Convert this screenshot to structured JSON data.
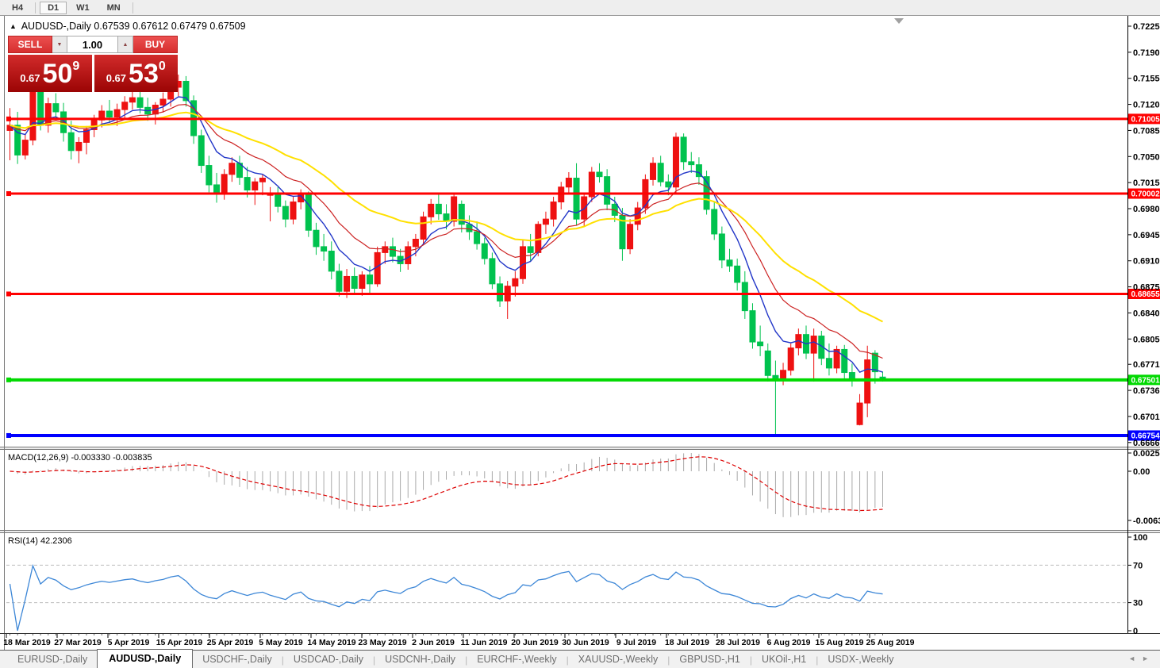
{
  "toolbar": {
    "timeframes": [
      "H4",
      "D1",
      "W1",
      "MN"
    ],
    "active": "D1"
  },
  "chart_header": {
    "symbol": "AUDUSD-,Daily",
    "ohlc": "0.67539 0.67612 0.67479 0.67509"
  },
  "trade_panel": {
    "sell_label": "SELL",
    "buy_label": "BUY",
    "volume": "1.00",
    "sell": {
      "prefix": "0.67",
      "big": "50",
      "sup": "9"
    },
    "buy": {
      "prefix": "0.67",
      "big": "53",
      "sup": "0"
    }
  },
  "chart_data": {
    "type": "candlestick",
    "symbol": "AUDUSD",
    "timeframe": "Daily",
    "convention": "red = up candle, green = down candle",
    "colors": {
      "up": "#ee1111",
      "down": "#00c24e",
      "ma_fast": "#2236c8",
      "ma_mid": "#cc2222",
      "ma_slow": "#ffe000",
      "macd_bar": "#a9a9a9",
      "macd_signal": "#dd0000",
      "rsi_line": "#3d87d7"
    },
    "ohlc": [
      [
        0.7085,
        0.7115,
        0.7045,
        0.7092
      ],
      [
        0.7092,
        0.711,
        0.704,
        0.7052
      ],
      [
        0.7052,
        0.708,
        0.7046,
        0.7072
      ],
      [
        0.7072,
        0.7148,
        0.7065,
        0.7143
      ],
      [
        0.7143,
        0.7155,
        0.7085,
        0.7092
      ],
      [
        0.7092,
        0.7129,
        0.7082,
        0.7121
      ],
      [
        0.7121,
        0.7135,
        0.71,
        0.711
      ],
      [
        0.711,
        0.7122,
        0.707,
        0.7082
      ],
      [
        0.7082,
        0.7098,
        0.7046,
        0.7058
      ],
      [
        0.7058,
        0.7076,
        0.7041,
        0.7069
      ],
      [
        0.7069,
        0.7091,
        0.7053,
        0.7086
      ],
      [
        0.7086,
        0.7106,
        0.7076,
        0.7099
      ],
      [
        0.7099,
        0.7119,
        0.7089,
        0.7111
      ],
      [
        0.7111,
        0.7126,
        0.7095,
        0.7103
      ],
      [
        0.7103,
        0.7121,
        0.7091,
        0.7113
      ],
      [
        0.7113,
        0.7131,
        0.7101,
        0.7123
      ],
      [
        0.7123,
        0.7146,
        0.7113,
        0.7129
      ],
      [
        0.7129,
        0.7141,
        0.7108,
        0.7116
      ],
      [
        0.7116,
        0.7129,
        0.7098,
        0.7107
      ],
      [
        0.7107,
        0.7123,
        0.7093,
        0.7119
      ],
      [
        0.7119,
        0.7136,
        0.7109,
        0.7127
      ],
      [
        0.7127,
        0.7149,
        0.7117,
        0.7143
      ],
      [
        0.7143,
        0.716,
        0.7131,
        0.7151
      ],
      [
        0.7151,
        0.7158,
        0.7117,
        0.7125
      ],
      [
        0.7125,
        0.7132,
        0.7067,
        0.7078
      ],
      [
        0.7078,
        0.7086,
        0.7028,
        0.7038
      ],
      [
        0.7038,
        0.7051,
        0.7002,
        0.7012
      ],
      [
        0.7012,
        0.7028,
        0.6988,
        0.7
      ],
      [
        0.7,
        0.7033,
        0.6992,
        0.7026
      ],
      [
        0.7026,
        0.7049,
        0.7016,
        0.7041
      ],
      [
        0.7041,
        0.7051,
        0.7012,
        0.7022
      ],
      [
        0.7022,
        0.7036,
        0.6995,
        0.7005
      ],
      [
        0.7005,
        0.7021,
        0.6985,
        0.7016
      ],
      [
        0.7016,
        0.7026,
        0.6998,
        0.7021
      ],
      [
        0.6998,
        0.7009,
        0.6963,
        0.6999
      ],
      [
        0.6999,
        0.7009,
        0.6975,
        0.6983
      ],
      [
        0.6983,
        0.6991,
        0.6955,
        0.6966
      ],
      [
        0.6966,
        0.6996,
        0.6959,
        0.6989
      ],
      [
        0.6989,
        0.7006,
        0.6979,
        0.6999
      ],
      [
        0.6999,
        0.7003,
        0.6942,
        0.6951
      ],
      [
        0.6951,
        0.6961,
        0.6918,
        0.6929
      ],
      [
        0.6929,
        0.6946,
        0.691,
        0.6923
      ],
      [
        0.6923,
        0.6936,
        0.6885,
        0.6896
      ],
      [
        0.6896,
        0.6906,
        0.6862,
        0.6869
      ],
      [
        0.6869,
        0.6899,
        0.686,
        0.6889
      ],
      [
        0.6889,
        0.6901,
        0.6865,
        0.6873
      ],
      [
        0.6873,
        0.6896,
        0.6863,
        0.6891
      ],
      [
        0.6891,
        0.6903,
        0.6866,
        0.6879
      ],
      [
        0.6879,
        0.6929,
        0.6875,
        0.6921
      ],
      [
        0.6921,
        0.6936,
        0.6906,
        0.6929
      ],
      [
        0.6929,
        0.6941,
        0.6908,
        0.6916
      ],
      [
        0.6916,
        0.6926,
        0.6895,
        0.6906
      ],
      [
        0.6906,
        0.6936,
        0.6898,
        0.6929
      ],
      [
        0.6929,
        0.6946,
        0.6916,
        0.6939
      ],
      [
        0.6939,
        0.6976,
        0.6931,
        0.6969
      ],
      [
        0.6969,
        0.6993,
        0.6959,
        0.6986
      ],
      [
        0.6986,
        0.7001,
        0.6965,
        0.6973
      ],
      [
        0.6973,
        0.6986,
        0.6952,
        0.6963
      ],
      [
        0.6963,
        0.6999,
        0.6956,
        0.6996
      ],
      [
        0.6986,
        0.6991,
        0.6948,
        0.6959
      ],
      [
        0.6959,
        0.6971,
        0.6938,
        0.6949
      ],
      [
        0.6949,
        0.6963,
        0.6925,
        0.6933
      ],
      [
        0.6933,
        0.6941,
        0.6905,
        0.6913
      ],
      [
        0.6913,
        0.6921,
        0.6872,
        0.6879
      ],
      [
        0.6879,
        0.6889,
        0.6848,
        0.6856
      ],
      [
        0.6856,
        0.6883,
        0.6832,
        0.6876
      ],
      [
        0.6876,
        0.6896,
        0.6862,
        0.6886
      ],
      [
        0.6886,
        0.6939,
        0.6879,
        0.6929
      ],
      [
        0.6929,
        0.6946,
        0.691,
        0.6921
      ],
      [
        0.6921,
        0.6963,
        0.6916,
        0.6959
      ],
      [
        0.6959,
        0.6976,
        0.6946,
        0.6966
      ],
      [
        0.6966,
        0.6996,
        0.6956,
        0.6989
      ],
      [
        0.6989,
        0.7016,
        0.6979,
        0.7009
      ],
      [
        0.7009,
        0.7029,
        0.6999,
        0.7021
      ],
      [
        0.7021,
        0.7041,
        0.6958,
        0.6966
      ],
      [
        0.6966,
        0.7001,
        0.6956,
        0.6996
      ],
      [
        0.6996,
        0.7036,
        0.6989,
        0.7029
      ],
      [
        0.7029,
        0.7041,
        0.7015,
        0.7023
      ],
      [
        0.7023,
        0.7033,
        0.6978,
        0.6986
      ],
      [
        0.6986,
        0.6996,
        0.6962,
        0.6971
      ],
      [
        0.6971,
        0.6981,
        0.691,
        0.6926
      ],
      [
        0.6926,
        0.6966,
        0.6919,
        0.6959
      ],
      [
        0.6959,
        0.6989,
        0.6951,
        0.6981
      ],
      [
        0.6981,
        0.7026,
        0.6973,
        0.7019
      ],
      [
        0.7019,
        0.7049,
        0.7011,
        0.7041
      ],
      [
        0.7041,
        0.7051,
        0.701,
        0.7016
      ],
      [
        0.7016,
        0.7026,
        0.6998,
        0.7009
      ],
      [
        0.7009,
        0.7082,
        0.7001,
        0.7076
      ],
      [
        0.7076,
        0.7081,
        0.7032,
        0.7043
      ],
      [
        0.7043,
        0.7056,
        0.7028,
        0.7039
      ],
      [
        0.7039,
        0.7049,
        0.7012,
        0.7023
      ],
      [
        0.7023,
        0.7031,
        0.6972,
        0.6979
      ],
      [
        0.6979,
        0.6989,
        0.6938,
        0.6946
      ],
      [
        0.6946,
        0.6956,
        0.69,
        0.6911
      ],
      [
        0.6911,
        0.6926,
        0.6895,
        0.6903
      ],
      [
        0.6903,
        0.6913,
        0.687,
        0.6881
      ],
      [
        0.6881,
        0.6896,
        0.6832,
        0.6843
      ],
      [
        0.6843,
        0.6853,
        0.6792,
        0.6801
      ],
      [
        0.6801,
        0.6823,
        0.6782,
        0.6796
      ],
      [
        0.6789,
        0.6799,
        0.6748,
        0.6756
      ],
      [
        0.6756,
        0.6776,
        0.6677,
        0.675
      ],
      [
        0.675,
        0.6773,
        0.6743,
        0.6763
      ],
      [
        0.6763,
        0.6799,
        0.6756,
        0.6793
      ],
      [
        0.6793,
        0.6819,
        0.6783,
        0.6811
      ],
      [
        0.6811,
        0.6823,
        0.6778,
        0.6786
      ],
      [
        0.6786,
        0.6819,
        0.6748,
        0.6809
      ],
      [
        0.6809,
        0.6816,
        0.677,
        0.6779
      ],
      [
        0.6779,
        0.6799,
        0.6756,
        0.6766
      ],
      [
        0.6766,
        0.6796,
        0.6759,
        0.6791
      ],
      [
        0.6791,
        0.6797,
        0.6752,
        0.676
      ],
      [
        0.676,
        0.6772,
        0.6741,
        0.6752
      ],
      [
        0.669,
        0.6731,
        0.6689,
        0.6719
      ],
      [
        0.6719,
        0.6796,
        0.67,
        0.6777
      ],
      [
        0.6786,
        0.679,
        0.6745,
        0.6761
      ],
      [
        0.67539,
        0.67612,
        0.67479,
        0.67509
      ]
    ],
    "moving_averages": [
      {
        "period": 7,
        "color": "#2236c8",
        "width": 1.4
      },
      {
        "period": 14,
        "color": "#cc2222",
        "width": 1.2
      },
      {
        "period": 30,
        "color": "#ffe000",
        "width": 2
      }
    ],
    "hlines": [
      {
        "label": "0.71005",
        "price": 0.71005,
        "color": "#ff0000",
        "width": 3
      },
      {
        "label": "0.70002",
        "price": 0.70002,
        "color": "#ff0000",
        "width": 3
      },
      {
        "label": "0.68655",
        "price": 0.68655,
        "color": "#ff0000",
        "width": 3
      },
      {
        "label": "0.67501",
        "price": 0.67501,
        "color": "#00d900",
        "width": 4
      },
      {
        "label": "0.66754",
        "price": 0.66754,
        "color": "#0000ff",
        "width": 4
      }
    ],
    "y_axis_ticks": [
      "0.72250",
      "0.71900",
      "0.71550",
      "0.71200",
      "0.70850",
      "0.70500",
      "0.70150",
      "0.69800",
      "0.69450",
      "0.69100",
      "0.68750",
      "0.68400",
      "0.68050",
      "0.67710",
      "0.67360",
      "0.67010",
      "0.66660"
    ],
    "x_axis_dates": [
      "18 Mar 2019",
      "27 Mar 2019",
      "5 Apr 2019",
      "15 Apr 2019",
      "25 Apr 2019",
      "5 May 2019",
      "14 May 2019",
      "23 May 2019",
      "2 Jun 2019",
      "11 Jun 2019",
      "20 Jun 2019",
      "30 Jun 2019",
      "9 Jul 2019",
      "18 Jul 2019",
      "28 Jul 2019",
      "6 Aug 2019",
      "15 Aug 2019",
      "25 Aug 2019"
    ],
    "indicators": [
      {
        "name": "MACD",
        "params": "12,26,9",
        "label": "MACD(12,26,9) -0.003330 -0.003835",
        "values": [
          "-0.003330",
          "-0.003835"
        ],
        "axis_labels": [
          "0.002574",
          "0.00",
          "-0.006326"
        ]
      },
      {
        "name": "RSI",
        "params": "14",
        "label": "RSI(14) 42.2306",
        "value": "42.2306",
        "axis_labels": [
          "100",
          "70",
          "30",
          "0"
        ],
        "levels": [
          70,
          30
        ]
      }
    ]
  },
  "tabs": {
    "items": [
      "EURUSD-,Daily",
      "AUDUSD-,Daily",
      "USDCHF-,Daily",
      "USDCAD-,Daily",
      "USDCNH-,Daily",
      "EURCHF-,Weekly",
      "XAUUSD-,Weekly",
      "GBPUSD-,H1",
      "UKOil-,H1",
      "USDX-,Weekly"
    ],
    "active_index": 1
  }
}
